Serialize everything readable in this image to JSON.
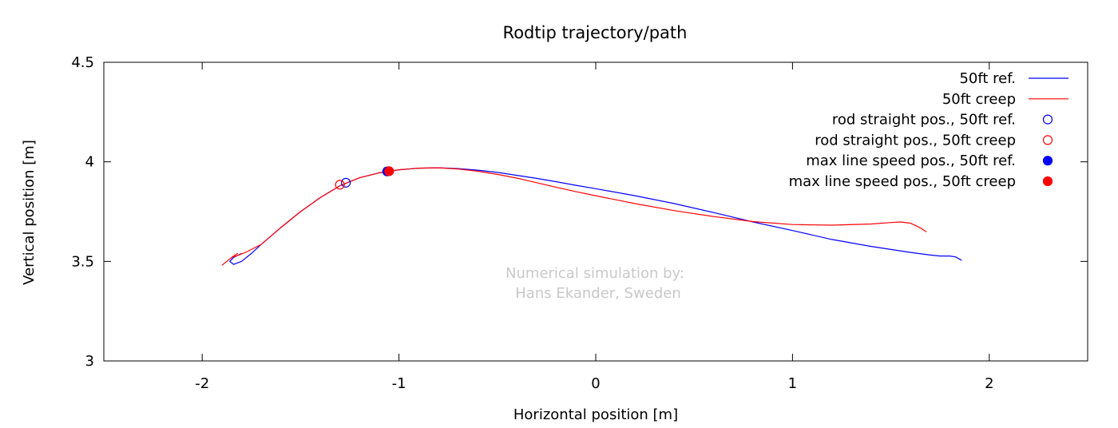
{
  "chart_data": {
    "type": "line",
    "title": "Rodtip trajectory/path",
    "xlabel": "Horizontal position [m]",
    "ylabel": "Vertical position [m]",
    "xlim": [
      -2.5,
      2.5
    ],
    "ylim": [
      3,
      4.5
    ],
    "xticks": [
      -2,
      -1,
      0,
      1,
      2
    ],
    "yticks": [
      3,
      3.5,
      4,
      4.5
    ],
    "grid": false,
    "legend_position": "top-right",
    "annotation": [
      "Numerical simulation by:",
      "Hans Ekander, Sweden"
    ],
    "series": [
      {
        "name": "50ft ref.",
        "color": "#0000ff",
        "style": "line",
        "x": [
          -1.8,
          -1.84,
          -1.86,
          -1.84,
          -1.8,
          -1.75,
          -1.7,
          -1.6,
          -1.5,
          -1.4,
          -1.3,
          -1.2,
          -1.1,
          -1.0,
          -0.9,
          -0.8,
          -0.7,
          -0.6,
          -0.5,
          -0.4,
          -0.3,
          -0.2,
          -0.1,
          0.0,
          0.2,
          0.4,
          0.6,
          0.8,
          1.0,
          1.2,
          1.4,
          1.6,
          1.7,
          1.75,
          1.8,
          1.83,
          1.86
        ],
        "y": [
          3.54,
          3.52,
          3.5,
          3.485,
          3.5,
          3.54,
          3.585,
          3.67,
          3.75,
          3.82,
          3.88,
          3.92,
          3.945,
          3.96,
          3.968,
          3.97,
          3.966,
          3.958,
          3.947,
          3.932,
          3.917,
          3.9,
          3.882,
          3.865,
          3.83,
          3.79,
          3.745,
          3.698,
          3.655,
          3.61,
          3.575,
          3.545,
          3.532,
          3.527,
          3.527,
          3.522,
          3.505
        ]
      },
      {
        "name": "50ft creep",
        "color": "#ff0000",
        "style": "line",
        "x": [
          -1.9,
          -1.85,
          -1.82,
          -1.85,
          -1.82,
          -1.78,
          -1.7,
          -1.6,
          -1.5,
          -1.4,
          -1.3,
          -1.2,
          -1.1,
          -1.0,
          -0.9,
          -0.8,
          -0.7,
          -0.6,
          -0.5,
          -0.4,
          -0.3,
          -0.2,
          -0.1,
          0.0,
          0.2,
          0.4,
          0.6,
          0.8,
          1.0,
          1.2,
          1.4,
          1.5,
          1.55,
          1.6,
          1.65,
          1.68
        ],
        "y": [
          3.48,
          3.52,
          3.54,
          3.52,
          3.53,
          3.545,
          3.585,
          3.67,
          3.75,
          3.82,
          3.88,
          3.92,
          3.945,
          3.96,
          3.968,
          3.97,
          3.964,
          3.953,
          3.937,
          3.918,
          3.895,
          3.872,
          3.85,
          3.83,
          3.79,
          3.755,
          3.725,
          3.7,
          3.685,
          3.682,
          3.688,
          3.695,
          3.698,
          3.692,
          3.668,
          3.648
        ]
      },
      {
        "name": "rod straight pos., 50ft ref.",
        "color": "#0000ff",
        "style": "open-circle",
        "x": [
          -1.27
        ],
        "y": [
          3.895
        ]
      },
      {
        "name": "rod straight pos., 50ft creep",
        "color": "#ff0000",
        "style": "open-circle",
        "x": [
          -1.3
        ],
        "y": [
          3.885
        ]
      },
      {
        "name": "max line speed pos., 50ft ref.",
        "color": "#0000ff",
        "style": "filled-circle",
        "x": [
          -1.06
        ],
        "y": [
          3.952
        ]
      },
      {
        "name": "max line speed pos., 50ft creep",
        "color": "#ff0000",
        "style": "filled-circle",
        "x": [
          -1.05
        ],
        "y": [
          3.953
        ]
      }
    ]
  }
}
